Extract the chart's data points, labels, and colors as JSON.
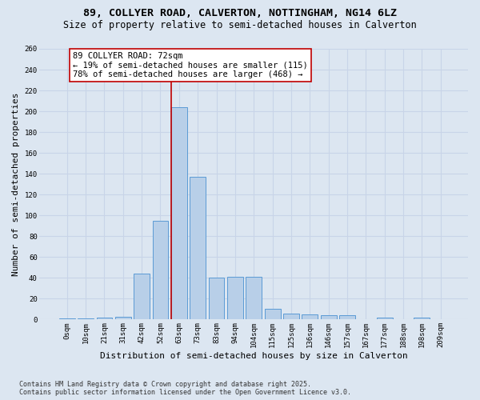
{
  "title_line1": "89, COLLYER ROAD, CALVERTON, NOTTINGHAM, NG14 6LZ",
  "title_line2": "Size of property relative to semi-detached houses in Calverton",
  "xlabel": "Distribution of semi-detached houses by size in Calverton",
  "ylabel": "Number of semi-detached properties",
  "bar_labels": [
    "0sqm",
    "10sqm",
    "21sqm",
    "31sqm",
    "42sqm",
    "52sqm",
    "63sqm",
    "73sqm",
    "83sqm",
    "94sqm",
    "104sqm",
    "115sqm",
    "125sqm",
    "136sqm",
    "146sqm",
    "157sqm",
    "167sqm",
    "177sqm",
    "188sqm",
    "198sqm",
    "209sqm"
  ],
  "bar_values": [
    1,
    1,
    2,
    3,
    44,
    95,
    204,
    137,
    40,
    41,
    41,
    10,
    6,
    5,
    4,
    4,
    0,
    2,
    0,
    2,
    0
  ],
  "bar_color": "#b8cfe8",
  "bar_edge_color": "#5b9bd5",
  "annotation_title": "89 COLLYER ROAD: 72sqm",
  "annotation_line1": "← 19% of semi-detached houses are smaller (115)",
  "annotation_line2": "78% of semi-detached houses are larger (468) →",
  "vline_color": "#c00000",
  "annotation_box_edgecolor": "#c00000",
  "ylim": [
    0,
    260
  ],
  "yticks": [
    0,
    20,
    40,
    60,
    80,
    100,
    120,
    140,
    160,
    180,
    200,
    220,
    240,
    260
  ],
  "background_color": "#dce6f1",
  "grid_color": "#c8d4e8",
  "footnote_line1": "Contains HM Land Registry data © Crown copyright and database right 2025.",
  "footnote_line2": "Contains public sector information licensed under the Open Government Licence v3.0.",
  "title_fontsize": 9.5,
  "subtitle_fontsize": 8.5,
  "axis_label_fontsize": 8,
  "tick_fontsize": 6.5,
  "annotation_fontsize": 7.5,
  "footnote_fontsize": 6
}
